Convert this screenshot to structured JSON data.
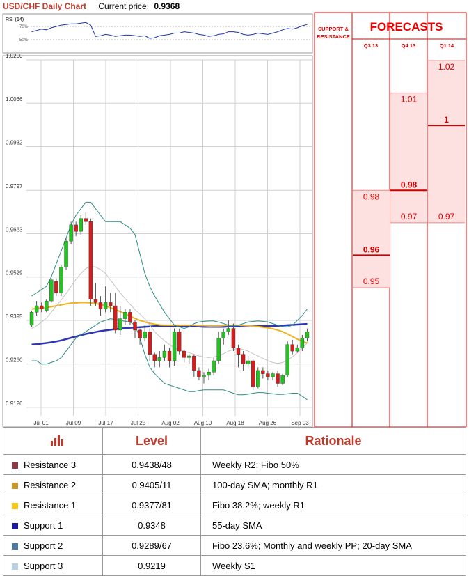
{
  "header": {
    "title": "USD/CHF Daily Chart",
    "current_price_label": "Current price:",
    "current_price": "0.9368"
  },
  "rsi": {
    "label": "RSI (14)",
    "ticks": [
      "70%",
      "50%"
    ]
  },
  "forecasts": {
    "title": "FORECASTS",
    "sr_label": [
      "SUPPORT &",
      "RESISTANCE"
    ],
    "columns": [
      "Q3 13",
      "Q4 13",
      "Q1 14"
    ]
  },
  "chart_data": {
    "type": "line",
    "title": "USD/CHF Daily Chart",
    "ylim": [
      0.91,
      1.02
    ],
    "y_ticks": [
      "1.0200",
      "1.0066",
      "0.9932",
      "0.9797",
      "0.9663",
      "0.9529",
      "0.9395",
      "0.9260",
      "0.9126"
    ],
    "x_ticks": [
      "Jul 01",
      "Jul 09",
      "Jul 17",
      "Jul 25",
      "Aug 02",
      "Aug 10",
      "Aug 18",
      "Aug 26",
      "Sep 03"
    ],
    "grid": true,
    "candles": [
      [
        0.938,
        0.942,
        0.9375,
        0.9425
      ],
      [
        0.942,
        0.944,
        0.941,
        0.9455
      ],
      [
        0.944,
        0.943,
        0.942,
        0.945
      ],
      [
        0.9425,
        0.9455,
        0.942,
        0.946
      ],
      [
        0.9455,
        0.952,
        0.945,
        0.9525
      ],
      [
        0.9515,
        0.948,
        0.947,
        0.9525
      ],
      [
        0.948,
        0.956,
        0.947,
        0.9565
      ],
      [
        0.956,
        0.964,
        0.955,
        0.965
      ],
      [
        0.964,
        0.969,
        0.963,
        0.97
      ],
      [
        0.969,
        0.967,
        0.9655,
        0.97
      ],
      [
        0.967,
        0.971,
        0.966,
        0.972
      ],
      [
        0.971,
        0.97,
        0.969,
        0.973
      ],
      [
        0.97,
        0.946,
        0.944,
        0.971
      ],
      [
        0.946,
        0.945,
        0.944,
        0.951
      ],
      [
        0.945,
        0.943,
        0.941,
        0.947
      ],
      [
        0.943,
        0.945,
        0.942,
        0.95
      ],
      [
        0.945,
        0.944,
        0.942,
        0.948
      ],
      [
        0.944,
        0.9365,
        0.9355,
        0.948
      ],
      [
        0.9365,
        0.94,
        0.935,
        0.944
      ],
      [
        0.94,
        0.942,
        0.938,
        0.943
      ],
      [
        0.942,
        0.939,
        0.938,
        0.943
      ],
      [
        0.939,
        0.9365,
        0.934,
        0.9395
      ],
      [
        0.9365,
        0.934,
        0.932,
        0.937
      ],
      [
        0.934,
        0.936,
        0.933,
        0.938
      ],
      [
        0.936,
        0.929,
        0.927,
        0.937
      ],
      [
        0.929,
        0.927,
        0.925,
        0.9295
      ],
      [
        0.927,
        0.928,
        0.925,
        0.93
      ],
      [
        0.928,
        0.93,
        0.927,
        0.932
      ],
      [
        0.93,
        0.927,
        0.925,
        0.931
      ],
      [
        0.927,
        0.936,
        0.9255,
        0.937
      ],
      [
        0.936,
        0.93,
        0.929,
        0.937
      ],
      [
        0.93,
        0.928,
        0.9265,
        0.9305
      ],
      [
        0.928,
        0.9285,
        0.926,
        0.929
      ],
      [
        0.9285,
        0.924,
        0.922,
        0.929
      ],
      [
        0.924,
        0.922,
        0.921,
        0.925
      ],
      [
        0.922,
        0.9225,
        0.92,
        0.9235
      ],
      [
        0.9225,
        0.9235,
        0.921,
        0.9245
      ],
      [
        0.9235,
        0.927,
        0.9225,
        0.928
      ],
      [
        0.927,
        0.934,
        0.926,
        0.936
      ],
      [
        0.934,
        0.936,
        0.932,
        0.937
      ],
      [
        0.936,
        0.937,
        0.935,
        0.9395
      ],
      [
        0.937,
        0.931,
        0.93,
        0.9385
      ],
      [
        0.931,
        0.929,
        0.925,
        0.932
      ],
      [
        0.929,
        0.926,
        0.924,
        0.93
      ],
      [
        0.926,
        0.927,
        0.9245,
        0.9285
      ],
      [
        0.927,
        0.919,
        0.918,
        0.9275
      ],
      [
        0.919,
        0.924,
        0.9185,
        0.925
      ],
      [
        0.924,
        0.923,
        0.9215,
        0.925
      ],
      [
        0.923,
        0.922,
        0.921,
        0.924
      ],
      [
        0.922,
        0.923,
        0.921,
        0.9235
      ],
      [
        0.923,
        0.92,
        0.919,
        0.924
      ],
      [
        0.92,
        0.9225,
        0.9195,
        0.923
      ],
      [
        0.9225,
        0.932,
        0.922,
        0.933
      ],
      [
        0.932,
        0.93,
        0.929,
        0.9335
      ],
      [
        0.93,
        0.931,
        0.9295,
        0.932
      ],
      [
        0.931,
        0.934,
        0.93,
        0.935
      ],
      [
        0.934,
        0.936,
        0.933,
        0.937
      ]
    ],
    "series": [
      {
        "values": [
          0.932,
          0.9321,
          0.9323,
          0.9325,
          0.9327,
          0.933,
          0.9333,
          0.9337,
          0.9341,
          0.9345,
          0.9349,
          0.9353,
          0.9356,
          0.9359,
          0.9362,
          0.9364,
          0.9366,
          0.9368,
          0.937,
          0.9371,
          0.9372,
          0.9373,
          0.9374,
          0.9375,
          0.9376,
          0.9377,
          0.9377,
          0.9377,
          0.9377,
          0.9377,
          0.9377,
          0.9376,
          0.9376,
          0.9376,
          0.9376,
          0.9375,
          0.9375,
          0.9375,
          0.9375,
          0.9375,
          0.9376,
          0.9376,
          0.9376,
          0.9376,
          0.9376,
          0.9377,
          0.9377,
          0.9377,
          0.9377,
          0.9378,
          0.9378,
          0.9379,
          0.938,
          0.9381,
          0.9382,
          0.9383,
          0.9384
        ],
        "color": "#2b35b5"
      },
      {
        "values": [
          0.943,
          0.9432,
          0.9433,
          0.9435,
          0.9437,
          0.944,
          0.9443,
          0.9446,
          0.9448,
          0.9449,
          0.945,
          0.945,
          0.9449,
          0.9447,
          0.9444,
          0.944,
          0.9434,
          0.9428,
          0.9422,
          0.9415,
          0.9408,
          0.9401,
          0.9395,
          0.939,
          0.9386,
          0.9383,
          0.9381,
          0.938,
          0.938,
          0.938,
          0.938,
          0.938,
          0.938,
          0.938,
          0.9379,
          0.9379,
          0.9378,
          0.9378,
          0.9378,
          0.9379,
          0.938,
          0.938,
          0.938,
          0.9379,
          0.9378,
          0.9377,
          0.9376,
          0.9374,
          0.9372,
          0.9369,
          0.9365,
          0.936,
          0.9353,
          0.9345,
          0.9337,
          0.933,
          0.9325
        ],
        "color": "#f2b21b"
      },
      {
        "values": [
          0.937,
          0.9378,
          0.939,
          0.9402,
          0.942,
          0.944,
          0.9458,
          0.9478,
          0.95,
          0.9522,
          0.954,
          0.9555,
          0.9562,
          0.956,
          0.9552,
          0.954,
          0.952,
          0.95,
          0.948,
          0.9462,
          0.9445,
          0.9428,
          0.9415,
          0.94,
          0.938,
          0.936,
          0.9345,
          0.9332,
          0.932,
          0.931,
          0.9305,
          0.93,
          0.9295,
          0.929,
          0.9285,
          0.9282,
          0.928,
          0.9282,
          0.9285,
          0.9292,
          0.93,
          0.9305,
          0.9308,
          0.9305,
          0.93,
          0.9292,
          0.9285,
          0.9278,
          0.927,
          0.9265,
          0.9262,
          0.9265,
          0.9272,
          0.9282,
          0.9295,
          0.931,
          0.9325
        ],
        "color": "#c9c2c2"
      },
      {
        "values": [
          0.947,
          0.948,
          0.949,
          0.95,
          0.953,
          0.957,
          0.961,
          0.965,
          0.969,
          0.972,
          0.974,
          0.976,
          0.976,
          0.974,
          0.972,
          0.97,
          0.97,
          0.97,
          0.97,
          0.969,
          0.968,
          0.966,
          0.96,
          0.954,
          0.95,
          0.947,
          0.9445,
          0.942,
          0.94,
          0.938,
          0.9375,
          0.937,
          0.9375,
          0.9385,
          0.939,
          0.9392,
          0.9393,
          0.9393,
          0.939,
          0.9385,
          0.938,
          0.938,
          0.938,
          0.9385,
          0.939,
          0.9392,
          0.9393,
          0.9392,
          0.939,
          0.9385,
          0.938,
          0.9375,
          0.9375,
          0.938,
          0.9395,
          0.941,
          0.943
        ],
        "color": "#2e8b86"
      },
      {
        "values": [
          0.927,
          0.927,
          0.926,
          0.926,
          0.9265,
          0.927,
          0.928,
          0.93,
          0.932,
          0.934,
          0.935,
          0.936,
          0.937,
          0.938,
          0.939,
          0.9395,
          0.94,
          0.9398,
          0.9395,
          0.9392,
          0.939,
          0.938,
          0.934,
          0.929,
          0.925,
          0.923,
          0.9215,
          0.92,
          0.9195,
          0.919,
          0.9185,
          0.918,
          0.9175,
          0.9175,
          0.9178,
          0.918,
          0.918,
          0.918,
          0.918,
          0.918,
          0.9175,
          0.917,
          0.9165,
          0.9165,
          0.9167,
          0.917,
          0.9172,
          0.9172,
          0.917,
          0.9168,
          0.9166,
          0.9166,
          0.9168,
          0.917,
          0.917,
          0.916,
          0.915
        ],
        "color": "#2e8b86"
      }
    ],
    "levels": [
      {
        "value": 0.9438,
        "label": "0.9438",
        "color": "#7a1d35"
      },
      {
        "value": 0.9405,
        "label": "0.9405",
        "color": "#d4a017"
      },
      {
        "value": 0.9377,
        "label": "0.9377",
        "color": "#f5c518"
      },
      {
        "value": 0.9348,
        "label": "0.9348",
        "color": "#1a1aa0"
      },
      {
        "value": 0.9289,
        "label": "0.9289",
        "color": "#4a7aa0"
      },
      {
        "value": 0.9219,
        "label": "0.9219",
        "color": "#a9c9dc"
      }
    ],
    "rsi_values": [
      62,
      64,
      66,
      65,
      68,
      70,
      72,
      73,
      74,
      74,
      75,
      76,
      72,
      55,
      56,
      58,
      57,
      55,
      56,
      57,
      57,
      56,
      55,
      56,
      52,
      53,
      56,
      57,
      58,
      60,
      60,
      62,
      61,
      60,
      58,
      57,
      55,
      56,
      58,
      59,
      62,
      62,
      61,
      58,
      57,
      58,
      60,
      59,
      58,
      60,
      62,
      65,
      67,
      66,
      68,
      71,
      73
    ],
    "forecast_ranges": [
      {
        "column": "Q3 13",
        "high": 0.98,
        "mid": 0.96,
        "low": 0.95,
        "labels": [
          "0.98",
          "0.96",
          "0.95"
        ]
      },
      {
        "column": "Q4 13",
        "high": 1.01,
        "mid": 0.98,
        "low": 0.97,
        "labels": [
          "1.01",
          "0.98",
          "0.97"
        ]
      },
      {
        "column": "Q1 14",
        "high": 1.02,
        "mid": 1.0,
        "low": 0.97,
        "labels": [
          "1.02",
          "1",
          "0.97"
        ]
      }
    ]
  },
  "table": {
    "headers": [
      "Level",
      "Rationale"
    ],
    "rows": [
      {
        "name": "Resistance 3",
        "level": "0.9438/48",
        "rationale": "Weekly R2; Fibo 50%",
        "color": "#8b3a45"
      },
      {
        "name": "Resistance 2",
        "level": "0.9405/11",
        "rationale": "100-day SMA; monthly R1",
        "color": "#c8962c"
      },
      {
        "name": "Resistance 1",
        "level": "0.9377/81",
        "rationale": "Fibo 38.2%; weekly R1",
        "color": "#f5c518"
      },
      {
        "name": "Support 1",
        "level": "0.9348",
        "rationale": "55-day SMA",
        "color": "#1a1aa0"
      },
      {
        "name": "Support 2",
        "level": "0.9289/67",
        "rationale": "Fibo 23.6%; Monthly and weekly PP; 20-day SMA",
        "color": "#4a7aa0"
      },
      {
        "name": "Support 3",
        "level": "0.9219",
        "rationale": "Weekly S1",
        "color": "#b6cfe3"
      }
    ]
  }
}
